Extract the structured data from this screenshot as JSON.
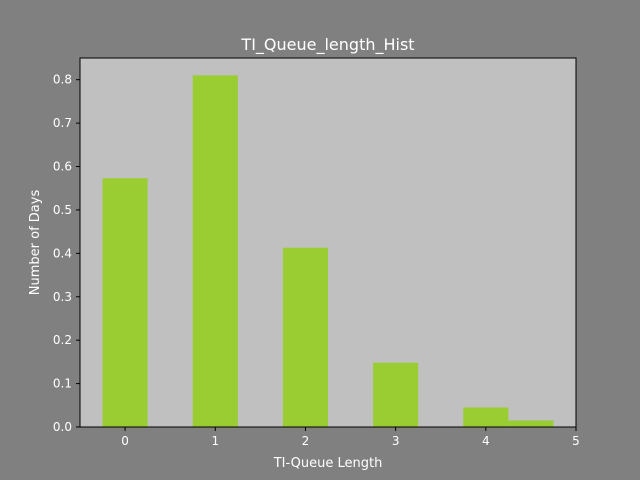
{
  "chart_data": {
    "type": "bar",
    "title": "TI_Queue_length_Hist",
    "xlabel": "TI-Queue Length",
    "ylabel": "Number of Days",
    "xlim": [
      -0.5,
      5
    ],
    "ylim": [
      0,
      0.85
    ],
    "xticks": [
      "0",
      "1",
      "2",
      "3",
      "4",
      "5"
    ],
    "yticks": [
      "0.0",
      "0.1",
      "0.2",
      "0.3",
      "0.4",
      "0.5",
      "0.6",
      "0.7",
      "0.8"
    ],
    "bins": [
      {
        "left": -0.25,
        "right": 0.25,
        "value": 0.573
      },
      {
        "left": 0.75,
        "right": 1.25,
        "value": 0.81
      },
      {
        "left": 1.75,
        "right": 2.25,
        "value": 0.413
      },
      {
        "left": 2.75,
        "right": 3.25,
        "value": 0.148
      },
      {
        "left": 3.75,
        "right": 4.25,
        "value": 0.045
      },
      {
        "left": 4.25,
        "right": 4.75,
        "value": 0.015
      }
    ],
    "grid": false,
    "colors": {
      "figure_background": "#808080",
      "plot_background": "#c0c0c0",
      "bar": "#9acd32",
      "text": "#ffffff"
    }
  }
}
